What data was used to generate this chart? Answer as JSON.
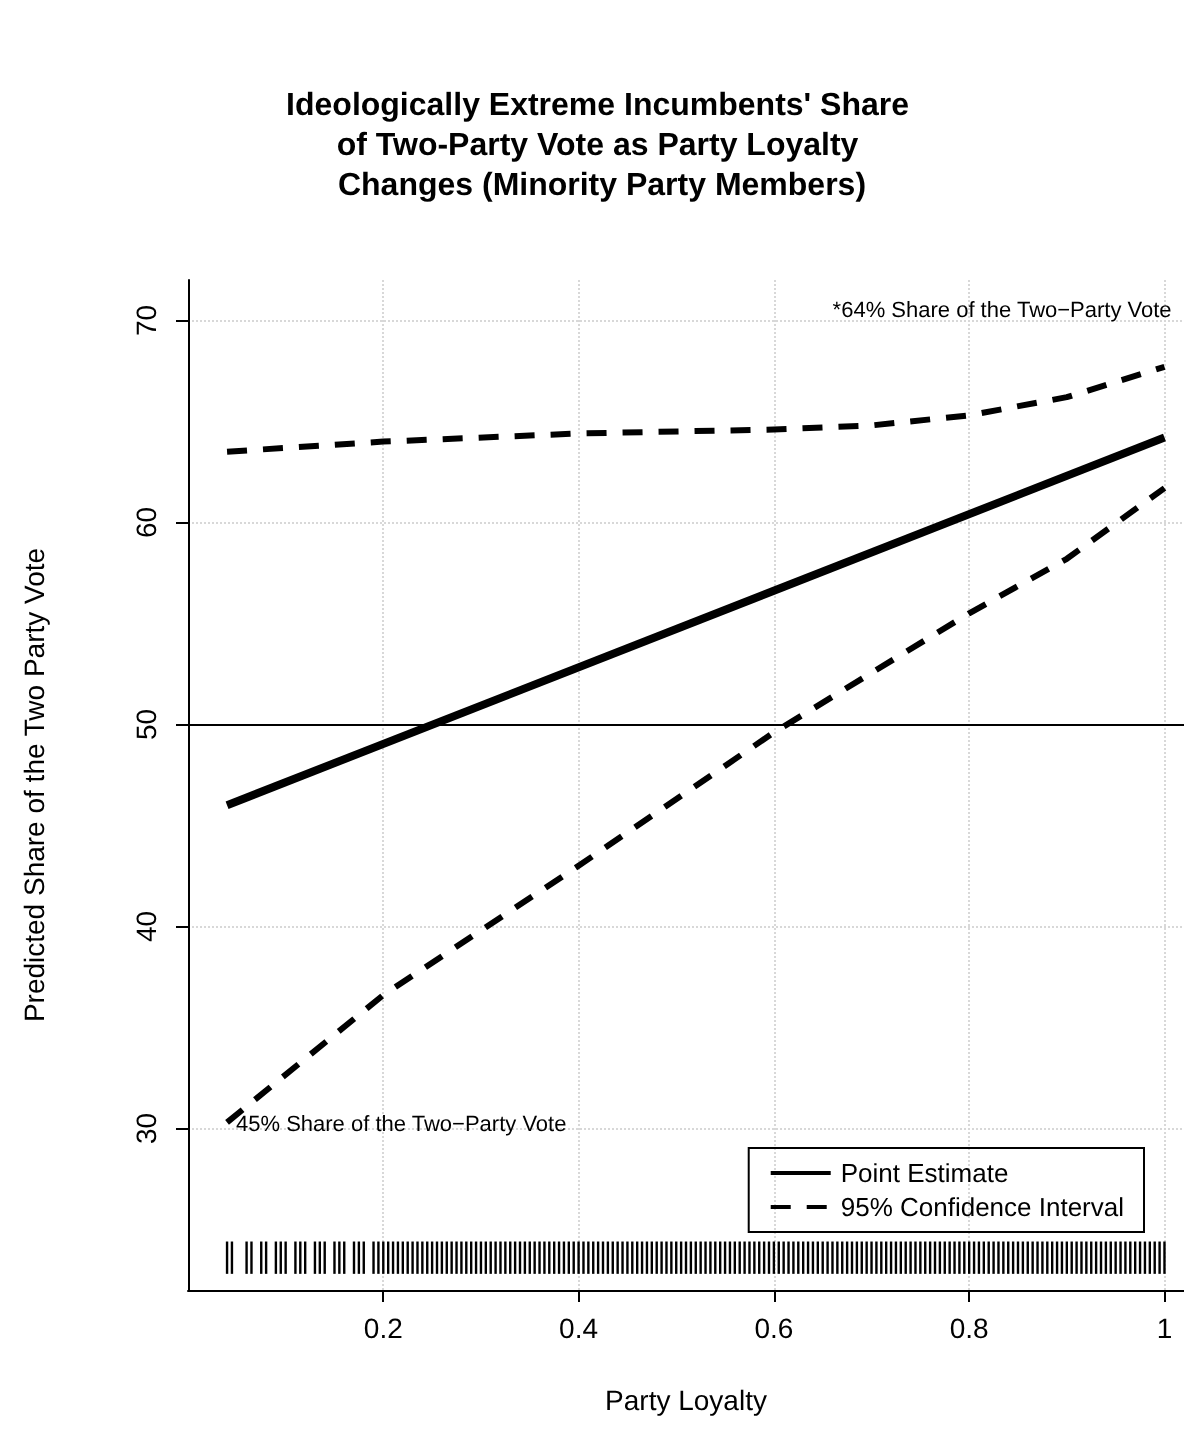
{
  "chart_data": {
    "type": "line",
    "title": "Ideologically Extreme Incumbents' Share of Two-Party Vote as Party Loyalty Changes (Minority Party Members)",
    "xlabel": "Party Loyalty",
    "ylabel": "Predicted Share of the Two Party Vote",
    "xlim": [
      0,
      1.02
    ],
    "ylim": [
      22,
      72
    ],
    "xticks": [
      0.2,
      0.4,
      0.6,
      0.8,
      1.0
    ],
    "yticks": [
      30,
      40,
      50,
      60,
      70
    ],
    "grid": true,
    "legend": "bottom right",
    "ref_lines": [
      {
        "axis": "y",
        "value": 50,
        "color": "#000000",
        "line_style": "solid"
      }
    ],
    "annotations": [
      "*64% Share of the Two−Party Vote",
      "45% Share of the Two−Party Vote"
    ],
    "series": [
      {
        "name": "Point Estimate",
        "color": "#000000",
        "line_style": "solid",
        "x": [
          0.04,
          1.0
        ],
        "values": [
          46.0,
          64.2
        ]
      },
      {
        "name": "95% Confidence Interval",
        "color": "#000000",
        "line_style": "dashed",
        "x": [
          0.04,
          0.2,
          0.4,
          0.6,
          0.7,
          0.8,
          0.9,
          1.0
        ],
        "values": [
          63.5,
          64.0,
          64.4,
          64.6,
          64.8,
          65.3,
          66.2,
          67.7
        ]
      },
      {
        "color": "#000000",
        "line_style": "dashed",
        "x": [
          0.04,
          0.2,
          0.4,
          0.6,
          0.8,
          0.9,
          1.0
        ],
        "values": [
          30.3,
          36.6,
          43.0,
          49.6,
          55.5,
          58.2,
          61.7
        ]
      },
      {
        "type": "bar",
        "color": "#000000",
        "base": [
          22.8,
          22.8,
          22.8,
          22.8,
          22.8,
          22.8,
          22.8,
          22.8,
          22.8,
          22.8,
          22.8,
          22.8,
          22.8,
          22.8,
          22.8,
          22.8,
          22.8,
          22.8,
          22.8,
          22.8,
          22.8,
          22.8,
          22.8,
          22.8,
          22.8,
          22.8,
          22.8,
          22.8,
          22.8,
          22.8,
          22.8,
          22.8,
          22.8,
          22.8,
          22.8,
          22.8,
          22.8,
          22.8,
          22.8,
          22.8,
          22.8,
          22.8,
          22.8,
          22.8,
          22.8,
          22.8,
          22.8,
          22.8,
          22.8,
          22.8,
          22.8,
          22.8,
          22.8,
          22.8,
          22.8,
          22.8,
          22.8,
          22.8,
          22.8,
          22.8,
          22.8,
          22.8,
          22.8,
          22.8,
          22.8,
          22.8,
          22.8,
          22.8,
          22.8,
          22.8,
          22.8,
          22.8,
          22.8,
          22.8,
          22.8,
          22.8,
          22.8,
          22.8,
          22.8,
          22.8,
          22.8,
          22.8,
          22.8,
          22.8,
          22.8,
          22.8,
          22.8,
          22.8,
          22.8,
          22.8,
          22.8,
          22.8,
          22.8,
          22.8,
          22.8,
          22.8,
          22.8,
          22.8,
          22.8,
          22.8,
          22.8,
          22.8,
          22.8,
          22.8,
          22.8,
          22.8,
          22.8,
          22.8,
          22.8,
          22.8,
          22.8,
          22.8,
          22.8,
          22.8,
          22.8,
          22.8,
          22.8,
          22.8,
          22.8,
          22.8,
          22.8,
          22.8,
          22.8,
          22.8,
          22.8,
          22.8,
          22.8,
          22.8,
          22.8,
          22.8,
          22.8,
          22.8,
          22.8,
          22.8,
          22.8,
          22.8,
          22.8,
          22.8,
          22.8,
          22.8,
          22.8,
          22.8,
          22.8,
          22.8,
          22.8,
          22.8,
          22.8,
          22.8,
          22.8,
          22.8,
          22.8,
          22.8,
          22.8,
          22.8,
          22.8,
          22.8,
          22.8,
          22.8,
          22.8,
          22.8,
          22.8,
          22.8,
          22.8,
          22.8,
          22.8,
          22.8,
          22.8,
          22.8,
          22.8,
          22.8,
          22.8,
          22.8,
          22.8,
          22.8,
          22.8,
          22.8,
          22.8,
          22.8,
          22.8,
          22.8,
          22.8,
          22.8,
          22.8,
          22.8
        ],
        "x": [
          0.04,
          0.045,
          0.06,
          0.065,
          0.075,
          0.08,
          0.09,
          0.095,
          0.1,
          0.11,
          0.115,
          0.12,
          0.13,
          0.135,
          0.14,
          0.15,
          0.155,
          0.16,
          0.17,
          0.175,
          0.18,
          0.19,
          0.195,
          0.2,
          0.205,
          0.21,
          0.215,
          0.22,
          0.225,
          0.23,
          0.235,
          0.24,
          0.245,
          0.25,
          0.255,
          0.26,
          0.265,
          0.27,
          0.275,
          0.28,
          0.285,
          0.29,
          0.295,
          0.3,
          0.305,
          0.31,
          0.315,
          0.32,
          0.325,
          0.33,
          0.335,
          0.34,
          0.345,
          0.35,
          0.355,
          0.36,
          0.365,
          0.37,
          0.375,
          0.38,
          0.385,
          0.39,
          0.395,
          0.4,
          0.405,
          0.41,
          0.415,
          0.42,
          0.425,
          0.43,
          0.435,
          0.44,
          0.445,
          0.45,
          0.455,
          0.46,
          0.465,
          0.47,
          0.475,
          0.48,
          0.485,
          0.49,
          0.495,
          0.5,
          0.505,
          0.51,
          0.515,
          0.52,
          0.525,
          0.53,
          0.535,
          0.54,
          0.545,
          0.55,
          0.555,
          0.56,
          0.565,
          0.57,
          0.575,
          0.58,
          0.585,
          0.59,
          0.595,
          0.6,
          0.605,
          0.61,
          0.615,
          0.62,
          0.625,
          0.63,
          0.635,
          0.64,
          0.645,
          0.65,
          0.655,
          0.66,
          0.665,
          0.67,
          0.675,
          0.68,
          0.685,
          0.69,
          0.695,
          0.7,
          0.705,
          0.71,
          0.715,
          0.72,
          0.725,
          0.73,
          0.735,
          0.74,
          0.745,
          0.75,
          0.755,
          0.76,
          0.765,
          0.77,
          0.775,
          0.78,
          0.785,
          0.79,
          0.795,
          0.8,
          0.805,
          0.81,
          0.815,
          0.82,
          0.825,
          0.83,
          0.835,
          0.84,
          0.845,
          0.85,
          0.855,
          0.86,
          0.865,
          0.87,
          0.875,
          0.88,
          0.885,
          0.89,
          0.895,
          0.9,
          0.905,
          0.91,
          0.915,
          0.92,
          0.925,
          0.93,
          0.935,
          0.94,
          0.945,
          0.95,
          0.955,
          0.96,
          0.965,
          0.97,
          0.975,
          0.98,
          0.985,
          0.99,
          0.995,
          1.0
        ],
        "values": [
          1.6,
          1.6,
          1.6,
          1.6,
          1.6,
          1.6,
          1.6,
          1.6,
          1.6,
          1.6,
          1.6,
          1.6,
          1.6,
          1.6,
          1.6,
          1.6,
          1.6,
          1.6,
          1.6,
          1.6,
          1.6,
          1.6,
          1.6,
          1.6,
          1.6,
          1.6,
          1.6,
          1.6,
          1.6,
          1.6,
          1.6,
          1.6,
          1.6,
          1.6,
          1.6,
          1.6,
          1.6,
          1.6,
          1.6,
          1.6,
          1.6,
          1.6,
          1.6,
          1.6,
          1.6,
          1.6,
          1.6,
          1.6,
          1.6,
          1.6,
          1.6,
          1.6,
          1.6,
          1.6,
          1.6,
          1.6,
          1.6,
          1.6,
          1.6,
          1.6,
          1.6,
          1.6,
          1.6,
          1.6,
          1.6,
          1.6,
          1.6,
          1.6,
          1.6,
          1.6,
          1.6,
          1.6,
          1.6,
          1.6,
          1.6,
          1.6,
          1.6,
          1.6,
          1.6,
          1.6,
          1.6,
          1.6,
          1.6,
          1.6,
          1.6,
          1.6,
          1.6,
          1.6,
          1.6,
          1.6,
          1.6,
          1.6,
          1.6,
          1.6,
          1.6,
          1.6,
          1.6,
          1.6,
          1.6,
          1.6,
          1.6,
          1.6,
          1.6,
          1.6,
          1.6,
          1.6,
          1.6,
          1.6,
          1.6,
          1.6,
          1.6,
          1.6,
          1.6,
          1.6,
          1.6,
          1.6,
          1.6,
          1.6,
          1.6,
          1.6,
          1.6,
          1.6,
          1.6,
          1.6,
          1.6,
          1.6,
          1.6,
          1.6,
          1.6,
          1.6,
          1.6,
          1.6,
          1.6,
          1.6,
          1.6,
          1.6,
          1.6,
          1.6,
          1.6,
          1.6,
          1.6,
          1.6,
          1.6,
          1.6,
          1.6,
          1.6,
          1.6,
          1.6,
          1.6,
          1.6,
          1.6,
          1.6,
          1.6,
          1.6,
          1.6,
          1.6,
          1.6,
          1.6,
          1.6,
          1.6,
          1.6,
          1.6,
          1.6,
          1.6,
          1.6,
          1.6,
          1.6,
          1.6,
          1.6,
          1.6,
          1.6,
          1.6,
          1.6,
          1.6,
          1.6,
          1.6,
          1.6,
          1.6,
          1.6,
          1.6,
          1.6,
          1.6,
          1.6,
          1.6
        ]
      }
    ]
  }
}
